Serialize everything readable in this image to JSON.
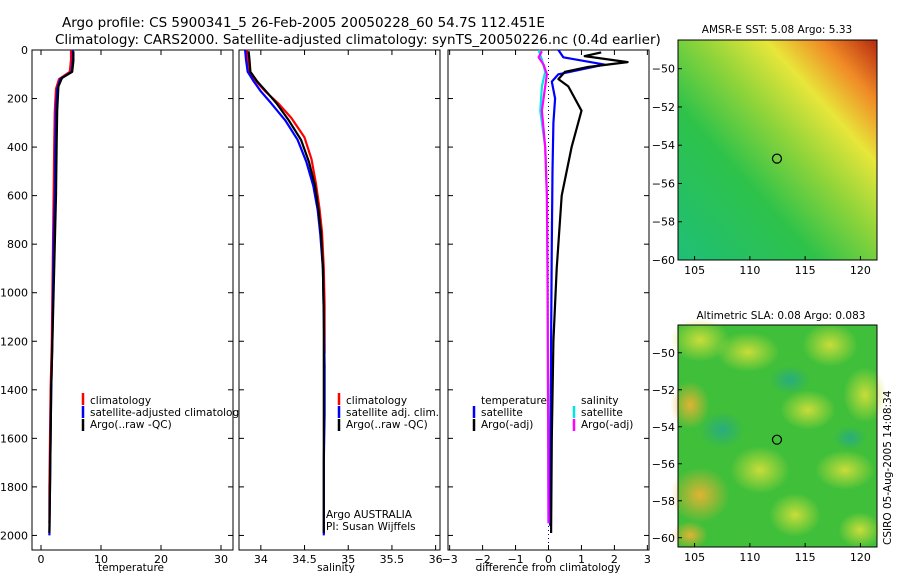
{
  "figure": {
    "title_line1": "Argo profile: CS 5900341_5 26-Feb-2005 20050228_60 54.7S 112.451E",
    "title_line2": "Climatology: CARS2000. Satellite-adjusted climatology: synTS_20050226.nc (0.4d earlier)",
    "credit": "CSIRO 05-Aug-2005 14:08:34",
    "y_ticks": [
      0,
      200,
      400,
      600,
      800,
      1000,
      1200,
      1400,
      1600,
      1800,
      2000
    ],
    "y_range": [
      0,
      2060
    ]
  },
  "colors": {
    "climatology": "#ff0000",
    "satellite": "#0000ff",
    "argo": "#000000",
    "salinity_satellite": "#00e5e5",
    "salinity_argo": "#ff00ff"
  },
  "chart_data": [
    {
      "type": "line",
      "id": "temperature",
      "xlabel": "temperature",
      "xlim": [
        -1.5,
        32
      ],
      "x_ticks": [
        0,
        10,
        20,
        30
      ],
      "legend": [
        "climatology",
        "satellite-adjusted climatology",
        "Argo(..raw -QC)"
      ],
      "series": [
        {
          "name": "climatology",
          "color": "#ff0000",
          "points": [
            [
              5.0,
              0
            ],
            [
              5.0,
              40
            ],
            [
              4.8,
              90
            ],
            [
              3.0,
              120
            ],
            [
              2.5,
              160
            ],
            [
              2.3,
              250
            ],
            [
              2.2,
              400
            ],
            [
              2.1,
              600
            ],
            [
              2.0,
              800
            ],
            [
              1.9,
              1000
            ],
            [
              1.8,
              1200
            ],
            [
              1.6,
              1400
            ],
            [
              1.5,
              1600
            ],
            [
              1.4,
              1800
            ],
            [
              1.4,
              1950
            ]
          ]
        },
        {
          "name": "satellite-adjusted climatology",
          "color": "#0000ff",
          "points": [
            [
              5.3,
              0
            ],
            [
              5.3,
              40
            ],
            [
              5.1,
              90
            ],
            [
              3.2,
              120
            ],
            [
              2.7,
              160
            ],
            [
              2.5,
              250
            ],
            [
              2.4,
              400
            ],
            [
              2.3,
              600
            ],
            [
              2.1,
              800
            ],
            [
              2.0,
              1000
            ],
            [
              1.9,
              1200
            ],
            [
              1.7,
              1400
            ],
            [
              1.6,
              1600
            ],
            [
              1.5,
              1800
            ],
            [
              1.4,
              2000
            ]
          ]
        },
        {
          "name": "Argo(..raw -QC)",
          "color": "#000000",
          "points": [
            [
              5.4,
              5
            ],
            [
              5.4,
              45
            ],
            [
              5.2,
              90
            ],
            [
              3.5,
              115
            ],
            [
              2.9,
              150
            ],
            [
              2.7,
              250
            ],
            [
              2.6,
              400
            ],
            [
              2.5,
              600
            ],
            [
              2.3,
              800
            ],
            [
              2.1,
              1000
            ],
            [
              1.9,
              1200
            ],
            [
              1.7,
              1400
            ],
            [
              1.6,
              1600
            ],
            [
              1.5,
              1800
            ],
            [
              1.4,
              1990
            ]
          ]
        }
      ]
    },
    {
      "type": "line",
      "id": "salinity",
      "xlabel": "salinity",
      "xlim": [
        33.75,
        36.05
      ],
      "x_ticks": [
        34,
        34.5,
        35,
        35.5,
        36
      ],
      "legend": [
        "climatology",
        "satellite adj. clim.",
        "Argo(..raw -QC)"
      ],
      "annotation": [
        "Argo AUSTRALIA",
        "PI: Susan Wijffels"
      ],
      "series": [
        {
          "name": "climatology",
          "color": "#ff0000",
          "points": [
            [
              33.84,
              0
            ],
            [
              33.85,
              40
            ],
            [
              33.87,
              90
            ],
            [
              33.95,
              130
            ],
            [
              34.05,
              170
            ],
            [
              34.2,
              220
            ],
            [
              34.35,
              280
            ],
            [
              34.5,
              360
            ],
            [
              34.58,
              450
            ],
            [
              34.63,
              550
            ],
            [
              34.67,
              650
            ],
            [
              34.7,
              750
            ],
            [
              34.72,
              900
            ],
            [
              34.73,
              1050
            ],
            [
              34.73,
              1250
            ]
          ]
        },
        {
          "name": "satellite adj. clim.",
          "color": "#0000ff",
          "points": [
            [
              33.82,
              0
            ],
            [
              33.83,
              40
            ],
            [
              33.85,
              90
            ],
            [
              33.92,
              130
            ],
            [
              34.0,
              170
            ],
            [
              34.12,
              220
            ],
            [
              34.28,
              290
            ],
            [
              34.42,
              370
            ],
            [
              34.52,
              460
            ],
            [
              34.6,
              560
            ],
            [
              34.65,
              660
            ],
            [
              34.68,
              760
            ],
            [
              34.71,
              900
            ],
            [
              34.72,
              1100
            ],
            [
              34.73,
              1300
            ],
            [
              34.73,
              1500
            ],
            [
              34.72,
              1700
            ],
            [
              34.72,
              2000
            ]
          ]
        },
        {
          "name": "Argo(..raw -QC)",
          "color": "#000000",
          "points": [
            [
              33.86,
              5
            ],
            [
              33.87,
              40
            ],
            [
              33.88,
              90
            ],
            [
              33.96,
              130
            ],
            [
              34.06,
              170
            ],
            [
              34.18,
              220
            ],
            [
              34.32,
              290
            ],
            [
              34.46,
              370
            ],
            [
              34.55,
              460
            ],
            [
              34.62,
              560
            ],
            [
              34.66,
              660
            ],
            [
              34.69,
              760
            ],
            [
              34.71,
              900
            ],
            [
              34.72,
              1100
            ],
            [
              34.72,
              1300
            ],
            [
              34.72,
              1500
            ],
            [
              34.72,
              1700
            ],
            [
              34.72,
              1990
            ]
          ]
        }
      ]
    },
    {
      "type": "line",
      "id": "difference",
      "xlabel": "difference from climatology",
      "xlim": [
        -3.05,
        3.05
      ],
      "x_ticks": [
        -3,
        -2,
        -1,
        0,
        1,
        2,
        3
      ],
      "legend_left": [
        "temperature",
        "satellite",
        "Argo(-adj)"
      ],
      "legend_right": [
        "salinity",
        "satellite",
        "Argo(-adj)"
      ],
      "series": [
        {
          "name": "temperature satellite",
          "color": "#0000ff",
          "points": [
            [
              0.3,
              0
            ],
            [
              0.45,
              30
            ],
            [
              1.7,
              60
            ],
            [
              0.3,
              100
            ],
            [
              0.1,
              130
            ],
            [
              0.2,
              200
            ],
            [
              0.15,
              300
            ],
            [
              0.12,
              500
            ],
            [
              0.1,
              800
            ],
            [
              0.08,
              1200
            ],
            [
              0.06,
              1600
            ],
            [
              0.05,
              1960
            ]
          ]
        },
        {
          "name": "temperature Argo(-adj)",
          "color": "#000000",
          "points": [
            [
              1.6,
              10
            ],
            [
              1.1,
              25
            ],
            [
              2.4,
              50
            ],
            [
              1.2,
              70
            ],
            [
              0.5,
              90
            ],
            [
              0.3,
              120
            ],
            [
              0.6,
              150
            ],
            [
              1.0,
              250
            ],
            [
              0.7,
              400
            ],
            [
              0.4,
              600
            ],
            [
              0.25,
              900
            ],
            [
              0.15,
              1200
            ],
            [
              0.1,
              1600
            ],
            [
              0.08,
              1990
            ]
          ]
        },
        {
          "name": "salinity satellite",
          "color": "#00e5e5",
          "points": [
            [
              -0.3,
              0
            ],
            [
              -0.2,
              40
            ],
            [
              -0.1,
              90
            ],
            [
              -0.2,
              150
            ],
            [
              -0.25,
              250
            ],
            [
              -0.1,
              400
            ],
            [
              -0.05,
              600
            ],
            [
              -0.03,
              900
            ],
            [
              -0.02,
              1200
            ],
            [
              -0.01,
              1600
            ],
            [
              0.0,
              1950
            ]
          ]
        },
        {
          "name": "salinity Argo(-adj)",
          "color": "#ff00ff",
          "points": [
            [
              -0.2,
              5
            ],
            [
              -0.3,
              30
            ],
            [
              -0.15,
              60
            ],
            [
              -0.05,
              100
            ],
            [
              -0.1,
              150
            ],
            [
              -0.2,
              250
            ],
            [
              -0.1,
              400
            ],
            [
              -0.05,
              600
            ],
            [
              -0.03,
              900
            ],
            [
              -0.02,
              1200
            ],
            [
              -0.01,
              1600
            ],
            [
              0.0,
              1950
            ]
          ]
        }
      ]
    },
    {
      "type": "heatmap",
      "id": "sst_map",
      "title": "AMSR-E SST: 5.08 Argo: 5.33",
      "xlim": [
        103.5,
        121.5
      ],
      "ylim": [
        -60,
        -48.5
      ],
      "x_ticks": [
        105,
        110,
        115,
        120
      ],
      "y_ticks": [
        -60,
        -58,
        -56,
        -54,
        -52,
        -50
      ],
      "marker": [
        112.451,
        -54.7
      ]
    },
    {
      "type": "heatmap",
      "id": "sla_map",
      "title": "Altimetric SLA: 0.08 Argo: 0.083",
      "xlim": [
        103.5,
        121.5
      ],
      "ylim": [
        -60.5,
        -48.5
      ],
      "x_ticks": [
        105,
        110,
        115,
        120
      ],
      "y_ticks": [
        -60,
        -58,
        -56,
        -54,
        -52,
        -50
      ],
      "marker": [
        112.451,
        -54.7
      ]
    }
  ]
}
